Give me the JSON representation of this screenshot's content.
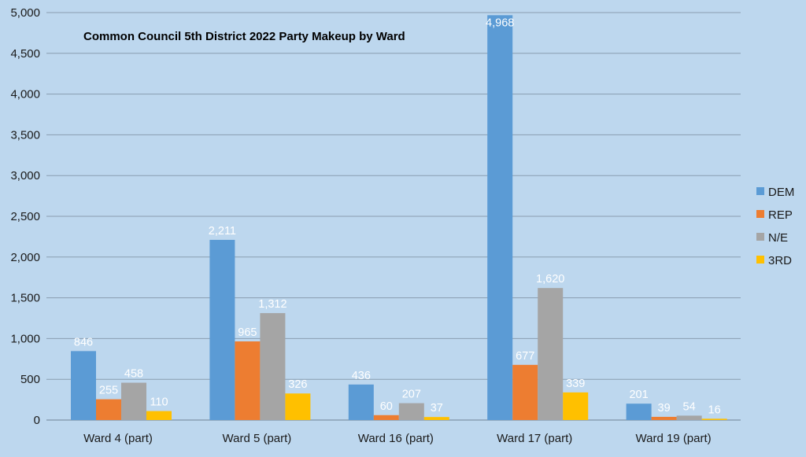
{
  "chart_data": {
    "type": "bar",
    "title": "Common Council 5th District 2022 Party Makeup by Ward",
    "categories": [
      "Ward 4 (part)",
      "Ward 5 (part)",
      "Ward 16 (part)",
      "Ward 17 (part)",
      "Ward 19 (part)"
    ],
    "series": [
      {
        "name": "DEM",
        "color": "#5b9bd5",
        "values": [
          846,
          2211,
          436,
          4968,
          201
        ],
        "labels": [
          "846",
          "2,211",
          "436",
          "4,968",
          "201"
        ]
      },
      {
        "name": "REP",
        "color": "#ed7d31",
        "values": [
          255,
          965,
          60,
          677,
          39
        ],
        "labels": [
          "255",
          "965",
          "60",
          "677",
          "39"
        ]
      },
      {
        "name": "N/E",
        "color": "#a5a5a5",
        "values": [
          458,
          1312,
          207,
          1620,
          54
        ],
        "labels": [
          "458",
          "1,312",
          "207",
          "1,620",
          "54"
        ]
      },
      {
        "name": "3RD",
        "color": "#ffc000",
        "values": [
          110,
          326,
          37,
          339,
          16
        ],
        "labels": [
          "110",
          "326",
          "37",
          "339",
          "16"
        ]
      }
    ],
    "ylim": [
      0,
      5000
    ],
    "yticks": [
      0,
      500,
      1000,
      1500,
      2000,
      2500,
      3000,
      3500,
      4000,
      4500,
      5000
    ],
    "ytick_labels": [
      "0",
      "500",
      "1,000",
      "1,500",
      "2,000",
      "2,500",
      "3,000",
      "3,500",
      "4,000",
      "4,500",
      "5,000"
    ],
    "xlabel": "",
    "ylabel": "",
    "grid": true,
    "legend_position": "right",
    "background": "#bdd7ee",
    "gridline_color": "#8a9db0"
  }
}
